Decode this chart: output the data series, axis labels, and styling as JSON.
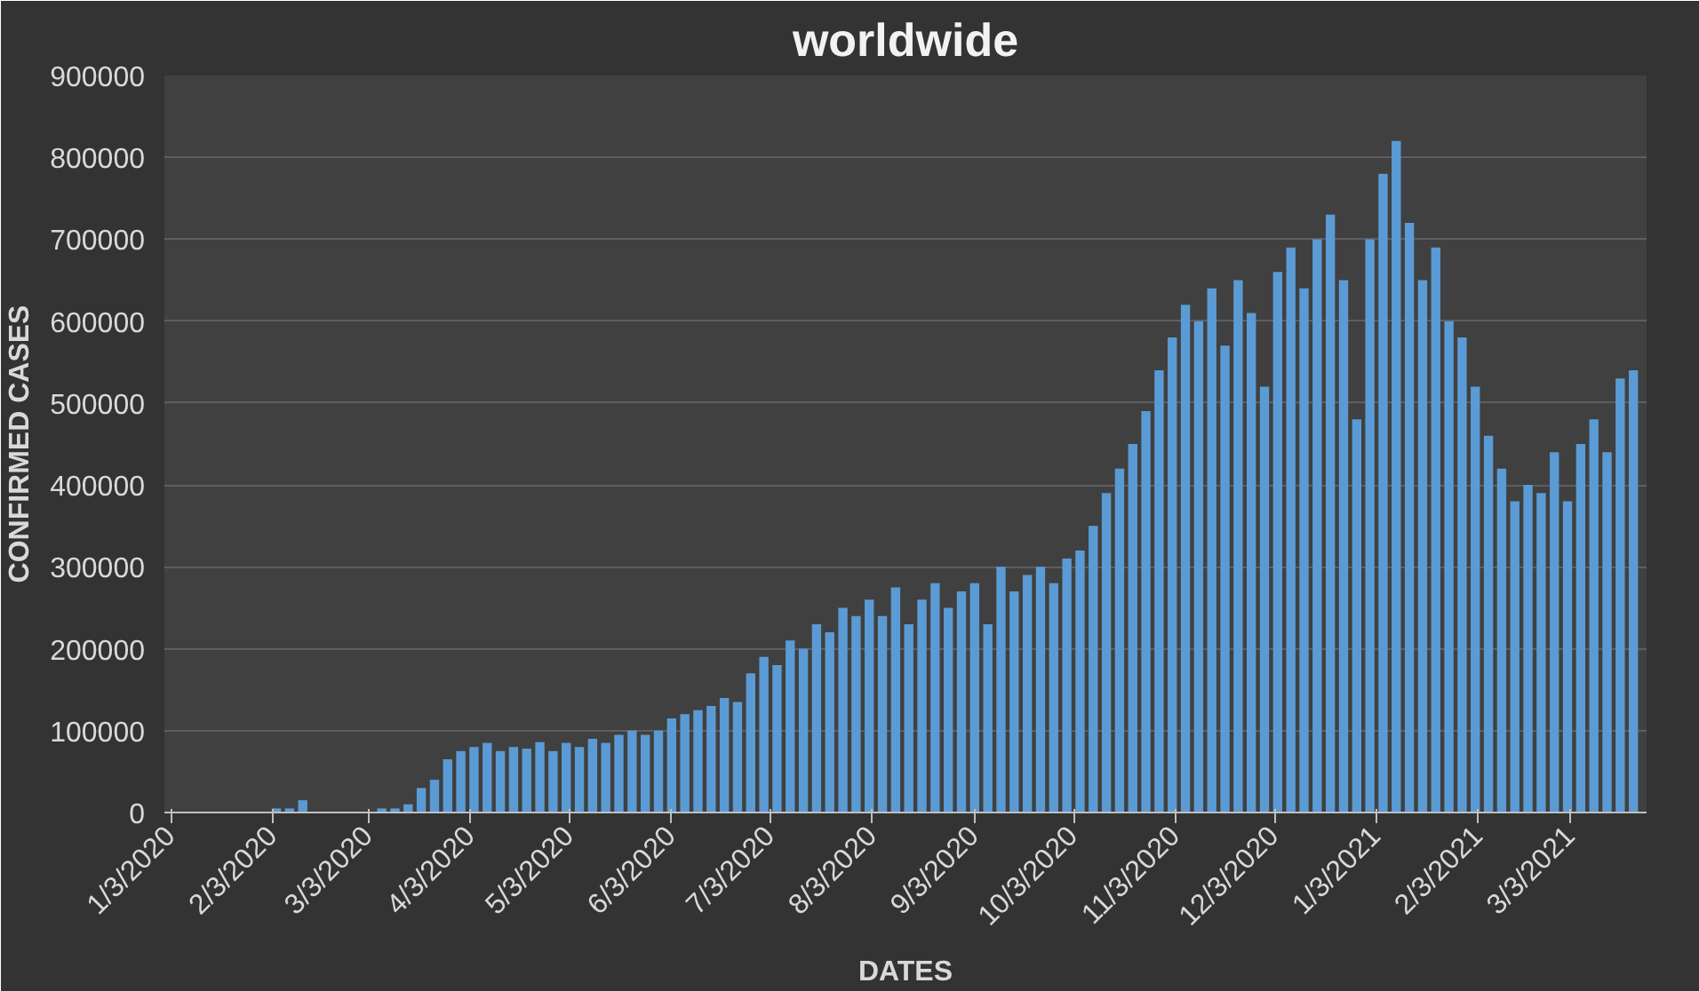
{
  "chart_data": {
    "type": "bar",
    "title": "worldwide",
    "xlabel": "DATES",
    "ylabel": "CONFIRMED CASES",
    "x": [
      "2020-01-03",
      "2020-01-07",
      "2020-01-11",
      "2020-01-15",
      "2020-01-19",
      "2020-01-23",
      "2020-01-27",
      "2020-01-31",
      "2020-02-04",
      "2020-02-08",
      "2020-02-12",
      "2020-02-16",
      "2020-02-20",
      "2020-02-24",
      "2020-02-28",
      "2020-03-03",
      "2020-03-07",
      "2020-03-11",
      "2020-03-15",
      "2020-03-19",
      "2020-03-23",
      "2020-03-27",
      "2020-03-31",
      "2020-04-04",
      "2020-04-08",
      "2020-04-12",
      "2020-04-16",
      "2020-04-20",
      "2020-04-24",
      "2020-04-28",
      "2020-05-02",
      "2020-05-06",
      "2020-05-10",
      "2020-05-14",
      "2020-05-18",
      "2020-05-22",
      "2020-05-26",
      "2020-05-30",
      "2020-06-03",
      "2020-06-07",
      "2020-06-11",
      "2020-06-15",
      "2020-06-19",
      "2020-06-23",
      "2020-06-27",
      "2020-07-01",
      "2020-07-05",
      "2020-07-09",
      "2020-07-13",
      "2020-07-17",
      "2020-07-21",
      "2020-07-25",
      "2020-07-29",
      "2020-08-02",
      "2020-08-06",
      "2020-08-10",
      "2020-08-14",
      "2020-08-18",
      "2020-08-22",
      "2020-08-26",
      "2020-08-30",
      "2020-09-03",
      "2020-09-07",
      "2020-09-11",
      "2020-09-15",
      "2020-09-19",
      "2020-09-23",
      "2020-09-27",
      "2020-10-01",
      "2020-10-05",
      "2020-10-09",
      "2020-10-13",
      "2020-10-17",
      "2020-10-21",
      "2020-10-25",
      "2020-10-29",
      "2020-11-02",
      "2020-11-06",
      "2020-11-10",
      "2020-11-14",
      "2020-11-18",
      "2020-11-22",
      "2020-11-26",
      "2020-11-30",
      "2020-12-04",
      "2020-12-08",
      "2020-12-12",
      "2020-12-16",
      "2020-12-20",
      "2020-12-24",
      "2020-12-28",
      "2021-01-01",
      "2021-01-05",
      "2021-01-09",
      "2021-01-13",
      "2021-01-17",
      "2021-01-21",
      "2021-01-25",
      "2021-01-29",
      "2021-02-02",
      "2021-02-06",
      "2021-02-10",
      "2021-02-14",
      "2021-02-18",
      "2021-02-22",
      "2021-02-26",
      "2021-03-02",
      "2021-03-06",
      "2021-03-10",
      "2021-03-14",
      "2021-03-18",
      "2021-03-22"
    ],
    "series": [
      {
        "color": "#5b9bd5",
        "values": [
          0,
          0,
          0,
          0,
          0,
          0,
          0,
          0,
          5000,
          5000,
          15000,
          0,
          0,
          0,
          0,
          0,
          5000,
          5000,
          10000,
          30000,
          40000,
          65000,
          75000,
          80000,
          85000,
          75000,
          80000,
          78000,
          86000,
          75000,
          85000,
          80000,
          90000,
          85000,
          95000,
          100000,
          95000,
          100000,
          115000,
          120000,
          125000,
          130000,
          140000,
          135000,
          170000,
          190000,
          180000,
          210000,
          200000,
          230000,
          220000,
          250000,
          240000,
          260000,
          240000,
          275000,
          230000,
          260000,
          280000,
          250000,
          270000,
          280000,
          230000,
          300000,
          270000,
          290000,
          300000,
          280000,
          310000,
          320000,
          350000,
          390000,
          420000,
          450000,
          490000,
          540000,
          580000,
          620000,
          600000,
          640000,
          570000,
          650000,
          610000,
          520000,
          660000,
          690000,
          640000,
          700000,
          730000,
          650000,
          480000,
          700000,
          780000,
          820000,
          720000,
          650000,
          690000,
          600000,
          580000,
          520000,
          460000,
          420000,
          380000,
          400000,
          390000,
          440000,
          380000,
          450000,
          480000,
          440000,
          530000,
          540000
        ]
      }
    ],
    "xlim": [
      "2020-01-01",
      "2021-03-26"
    ],
    "xticks": [
      {
        "value": "2020-01-03",
        "label": "1/3/2020"
      },
      {
        "value": "2020-02-03",
        "label": "2/3/2020"
      },
      {
        "value": "2020-03-03",
        "label": "3/3/2020"
      },
      {
        "value": "2020-04-03",
        "label": "4/3/2020"
      },
      {
        "value": "2020-05-03",
        "label": "5/3/2020"
      },
      {
        "value": "2020-06-03",
        "label": "6/3/2020"
      },
      {
        "value": "2020-07-03",
        "label": "7/3/2020"
      },
      {
        "value": "2020-08-03",
        "label": "8/3/2020"
      },
      {
        "value": "2020-09-03",
        "label": "9/3/2020"
      },
      {
        "value": "2020-10-03",
        "label": "10/3/2020"
      },
      {
        "value": "2020-11-03",
        "label": "11/3/2020"
      },
      {
        "value": "2020-12-03",
        "label": "12/3/2020"
      },
      {
        "value": "2021-01-03",
        "label": "1/3/2021"
      },
      {
        "value": "2021-02-03",
        "label": "2/3/2021"
      },
      {
        "value": "2021-03-03",
        "label": "3/3/2021"
      }
    ],
    "ylim": [
      0,
      900000
    ],
    "yticks": [
      0,
      100000,
      200000,
      300000,
      400000,
      500000,
      600000,
      700000,
      800000,
      900000
    ],
    "grid": "y"
  }
}
